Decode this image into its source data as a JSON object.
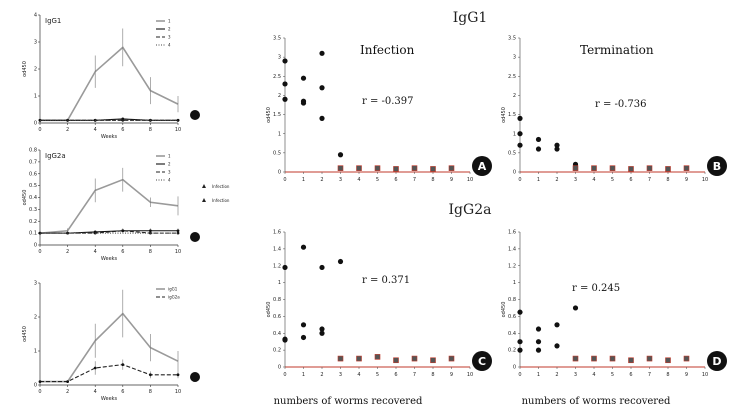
{
  "chart_data": [
    {
      "id": "left-a",
      "type": "line",
      "title": "IgG1",
      "ylabel": "od450",
      "xlabel": "Weeks",
      "x": [
        0,
        2,
        4,
        6,
        8,
        10
      ],
      "ylim": [
        0,
        4
      ],
      "series": [
        {
          "name": "1",
          "values": [
            0.1,
            0.1,
            1.9,
            2.8,
            1.2,
            0.7
          ],
          "err": [
            0,
            0,
            0.6,
            0.7,
            0.5,
            0.3
          ],
          "style": "gray"
        },
        {
          "name": "2",
          "values": [
            0.1,
            0.1,
            0.1,
            0.15,
            0.1,
            0.1
          ],
          "err": [
            0,
            0,
            0,
            0,
            0,
            0
          ],
          "style": "black"
        },
        {
          "name": "3",
          "values": [
            0.1,
            0.1,
            0.1,
            0.1,
            0.1,
            0.1
          ],
          "err": [
            0,
            0,
            0,
            0,
            0,
            0
          ],
          "style": "dash"
        },
        {
          "name": "4",
          "values": [
            0.1,
            0.1,
            0.1,
            0.1,
            0.1,
            0.1
          ],
          "err": [
            0,
            0,
            0,
            0,
            0,
            0
          ],
          "style": "dot"
        }
      ]
    },
    {
      "id": "left-b",
      "type": "line",
      "title": "IgG2a",
      "ylabel": "od450",
      "xlabel": "Weeks",
      "x": [
        0,
        2,
        4,
        6,
        8,
        10
      ],
      "ylim": [
        0,
        0.8
      ],
      "yticks": [
        0,
        0.1,
        0.2,
        0.3,
        0.4,
        0.5,
        0.6,
        0.7,
        0.8
      ],
      "series": [
        {
          "name": "1",
          "values": [
            0.1,
            0.12,
            0.46,
            0.55,
            0.36,
            0.33
          ],
          "err": [
            0,
            0.02,
            0.1,
            0.1,
            0.04,
            0.08
          ],
          "style": "gray"
        },
        {
          "name": "2",
          "values": [
            0.1,
            0.1,
            0.11,
            0.12,
            0.12,
            0.12
          ],
          "err": [
            0,
            0,
            0.01,
            0.02,
            0.02,
            0.02
          ],
          "style": "black"
        },
        {
          "name": "3",
          "values": [
            0.1,
            0.1,
            0.1,
            0.12,
            0.1,
            0.1
          ],
          "err": [
            0,
            0,
            0,
            0,
            0,
            0
          ],
          "style": "dash"
        },
        {
          "name": "4",
          "values": [
            0.1,
            0.1,
            0.1,
            0.1,
            0.1,
            0.1
          ],
          "err": [
            0,
            0,
            0,
            0,
            0,
            0
          ],
          "style": "dot"
        }
      ]
    },
    {
      "id": "left-c",
      "type": "line",
      "title": "",
      "ylabel": "od450",
      "xlabel": "Weeks",
      "x": [
        0,
        2,
        4,
        6,
        8,
        10
      ],
      "ylim": [
        0,
        3
      ],
      "series": [
        {
          "name": "igG1",
          "values": [
            0.1,
            0.1,
            1.3,
            2.1,
            1.1,
            0.7
          ],
          "err": [
            0,
            0,
            0.5,
            0.7,
            0.4,
            0.3
          ],
          "style": "gray"
        },
        {
          "name": "igG2a",
          "values": [
            0.1,
            0.1,
            0.5,
            0.6,
            0.3,
            0.3
          ],
          "err": [
            0,
            0,
            0.2,
            0.15,
            0.1,
            0.1
          ],
          "style": "dash"
        }
      ]
    },
    {
      "id": "A",
      "type": "scatter",
      "title": "Infection",
      "r": "r = -0.397",
      "ylabel": "od450",
      "xlim": [
        0,
        10
      ],
      "ylim": [
        0,
        3.5
      ],
      "yticks": [
        0,
        0.5,
        1,
        1.5,
        2,
        2.5,
        3,
        3.5
      ],
      "points": [
        [
          0,
          2.9
        ],
        [
          0,
          2.3
        ],
        [
          0,
          1.9
        ],
        [
          1,
          2.45
        ],
        [
          1,
          1.85
        ],
        [
          1,
          1.8
        ],
        [
          2,
          3.1
        ],
        [
          2,
          2.2
        ],
        [
          2,
          1.4
        ],
        [
          3,
          0.45
        ],
        [
          3,
          0.1
        ],
        [
          4,
          0.1
        ],
        [
          5,
          0.1
        ],
        [
          6,
          0.08
        ],
        [
          7,
          0.1
        ],
        [
          8,
          0.08
        ],
        [
          9,
          0.1
        ]
      ]
    },
    {
      "id": "B",
      "type": "scatter",
      "title": "Termination",
      "r": "r = -0.736",
      "ylabel": "od450",
      "xlim": [
        0,
        10
      ],
      "ylim": [
        0,
        3.5
      ],
      "yticks": [
        0,
        0.5,
        1,
        1.5,
        2,
        2.5,
        3,
        3.5
      ],
      "points": [
        [
          0,
          1.4
        ],
        [
          0,
          1.0
        ],
        [
          0,
          0.7
        ],
        [
          1,
          0.85
        ],
        [
          1,
          0.6
        ],
        [
          2,
          0.7
        ],
        [
          2,
          0.6
        ],
        [
          3,
          0.2
        ],
        [
          3,
          0.1
        ],
        [
          4,
          0.1
        ],
        [
          5,
          0.1
        ],
        [
          6,
          0.08
        ],
        [
          7,
          0.1
        ],
        [
          8,
          0.08
        ],
        [
          9,
          0.1
        ]
      ]
    },
    {
      "id": "C",
      "type": "scatter",
      "title": "",
      "r": "r = 0.371",
      "ylabel": "od450",
      "xlim": [
        0,
        10
      ],
      "ylim": [
        0,
        1.6
      ],
      "yticks": [
        0,
        0.2,
        0.4,
        0.6,
        0.8,
        1,
        1.2,
        1.4,
        1.6
      ],
      "points": [
        [
          0,
          1.18
        ],
        [
          0,
          0.33
        ],
        [
          0,
          0.32
        ],
        [
          1,
          1.42
        ],
        [
          1,
          0.5
        ],
        [
          1,
          0.35
        ],
        [
          2,
          1.18
        ],
        [
          2,
          0.45
        ],
        [
          2,
          0.4
        ],
        [
          3,
          1.25
        ],
        [
          3,
          0.1
        ],
        [
          4,
          0.1
        ],
        [
          5,
          0.12
        ],
        [
          6,
          0.08
        ],
        [
          7,
          0.1
        ],
        [
          8,
          0.08
        ],
        [
          9,
          0.1
        ]
      ]
    },
    {
      "id": "D",
      "type": "scatter",
      "title": "",
      "r": "r = 0.245",
      "ylabel": "od450",
      "xlim": [
        0,
        10
      ],
      "ylim": [
        0,
        1.6
      ],
      "yticks": [
        0,
        0.2,
        0.4,
        0.6,
        0.8,
        1,
        1.2,
        1.4,
        1.6
      ],
      "points": [
        [
          0,
          0.65
        ],
        [
          0,
          0.3
        ],
        [
          0,
          0.2
        ],
        [
          1,
          0.45
        ],
        [
          1,
          0.3
        ],
        [
          1,
          0.2
        ],
        [
          2,
          0.5
        ],
        [
          2,
          0.25
        ],
        [
          3,
          0.7
        ],
        [
          3,
          0.1
        ],
        [
          4,
          0.1
        ],
        [
          5,
          0.1
        ],
        [
          6,
          0.08
        ],
        [
          7,
          0.1
        ],
        [
          8,
          0.08
        ],
        [
          9,
          0.1
        ]
      ]
    }
  ],
  "figure": {
    "heading_top": "IgG1",
    "heading_mid": "IgG2a",
    "xcaption": "numbers of worms recovered",
    "legend_b": [
      "Infection",
      "Infection"
    ],
    "colors": {
      "accent": "#c0392b",
      "badge": "#111111",
      "gray_line": "#9a9a9a"
    }
  }
}
